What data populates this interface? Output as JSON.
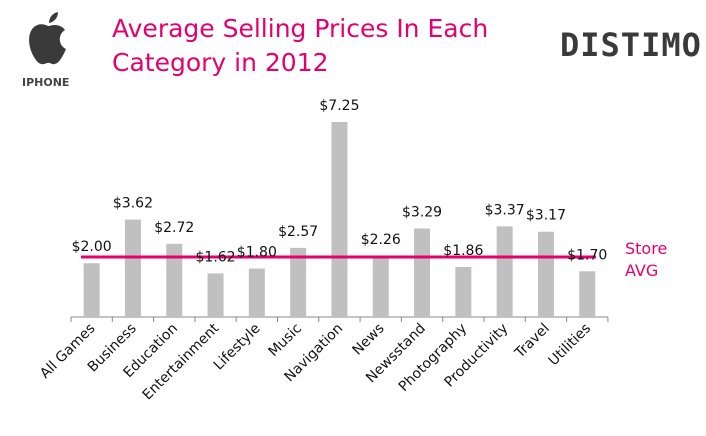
{
  "header": {
    "logo_label": "IPHONE",
    "brand": "DISTIMO",
    "icon": "apple-icon"
  },
  "chart_data": {
    "type": "bar",
    "title": "Average Selling Prices In Each Category in 2012",
    "title_lines": [
      "Average Selling Prices In Each",
      "Category in 2012"
    ],
    "categories": [
      "All Games",
      "Business",
      "Education",
      "Entertainment",
      "Lifestyle",
      "Music",
      "Navigation",
      "News",
      "Newsstand",
      "Photography",
      "Productivity",
      "Travel",
      "Utilities"
    ],
    "values": [
      2.0,
      3.62,
      2.72,
      1.62,
      1.8,
      2.57,
      7.25,
      2.26,
      3.29,
      1.86,
      3.37,
      3.17,
      1.7
    ],
    "data_labels": [
      "$2.00",
      "$3.62",
      "$2.72",
      "$1.62",
      "$1.80",
      "$2.57",
      "$7.25",
      "$2.26",
      "$3.29",
      "$1.86",
      "$3.37",
      "$3.17",
      "$1.70"
    ],
    "reference_line": {
      "name_lines": [
        "Store",
        "AVG"
      ],
      "value": 2.23
    },
    "ylim": [
      0,
      7.25
    ],
    "xlabel": "",
    "ylabel": "",
    "grid": false,
    "colors": {
      "bar": "#c0c0c0",
      "line": "#e5006d",
      "title": "#e5006d"
    }
  }
}
